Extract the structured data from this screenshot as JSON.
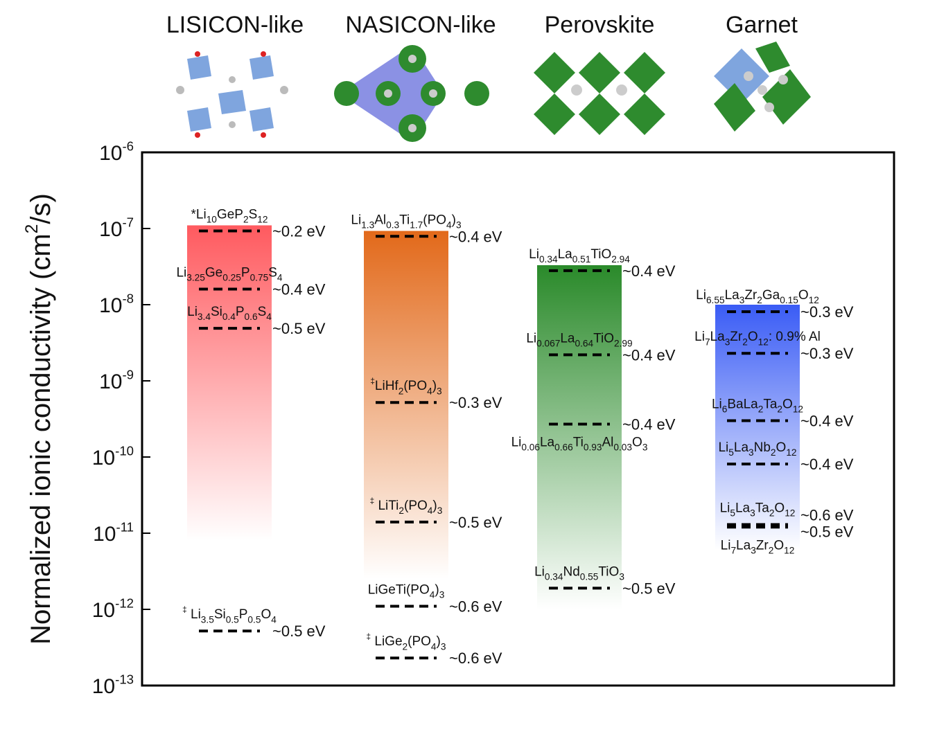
{
  "chart_data": {
    "type": "bar",
    "yscale": "log",
    "ylabel": [
      "Normalized ionic conductivity (cm",
      {
        "sup": "2"
      },
      "/s)"
    ],
    "ylim": [
      1e-13,
      1e-06
    ],
    "yticks": [
      {
        "value": 1e-06,
        "label": [
          "10",
          {
            "sup": "-6"
          }
        ]
      },
      {
        "value": 1e-07,
        "label": [
          "10",
          {
            "sup": "-7"
          }
        ]
      },
      {
        "value": 1e-08,
        "label": [
          "10",
          {
            "sup": "-8"
          }
        ]
      },
      {
        "value": 1e-09,
        "label": [
          "10",
          {
            "sup": "-9"
          }
        ]
      },
      {
        "value": 1e-10,
        "label": [
          "10",
          {
            "sup": "-10"
          }
        ]
      },
      {
        "value": 1e-11,
        "label": [
          "10",
          {
            "sup": "-11"
          }
        ]
      },
      {
        "value": 1e-12,
        "label": [
          "10",
          {
            "sup": "-12"
          }
        ]
      },
      {
        "value": 1e-13,
        "label": [
          "10",
          {
            "sup": "-13"
          }
        ]
      }
    ],
    "series": [
      {
        "name": "LISICON-like",
        "color": "#ff5a5f",
        "top": 1.1e-07,
        "fade_to": 8e-12,
        "points": [
          {
            "formula": [
              "*Li",
              {
                "sub": "10"
              },
              "GeP",
              {
                "sub": "2"
              },
              "S",
              {
                "sub": "12"
              }
            ],
            "value": 9.3e-08,
            "ea": "~0.2 eV"
          },
          {
            "formula": [
              "Li",
              {
                "sub": "3.25"
              },
              "Ge",
              {
                "sub": "0.25"
              },
              "P",
              {
                "sub": "0.75"
              },
              "S",
              {
                "sub": "4"
              }
            ],
            "value": 1.6e-08,
            "ea": "~0.4 eV"
          },
          {
            "formula": [
              "Li",
              {
                "sub": "3.4"
              },
              "Si",
              {
                "sub": "0.4"
              },
              "P",
              {
                "sub": "0.6"
              },
              "S",
              {
                "sub": "4"
              }
            ],
            "value": 4.9e-09,
            "ea": "~0.5 eV"
          },
          {
            "formula": [
              {
                "sup": "‡"
              },
              " Li",
              {
                "sub": "3.5"
              },
              "Si",
              {
                "sub": "0.5"
              },
              "P",
              {
                "sub": "0.5"
              },
              "O",
              {
                "sub": "4"
              }
            ],
            "value": 5.2e-13,
            "ea": "~0.5 eV"
          }
        ]
      },
      {
        "name": "NASICON-like",
        "color": "#e2691a",
        "top": 9.3e-08,
        "fade_to": 2.5e-12,
        "points": [
          {
            "formula": [
              "Li",
              {
                "sub": "1.3"
              },
              "Al",
              {
                "sub": "0.3"
              },
              "Ti",
              {
                "sub": "1.7"
              },
              "(PO",
              {
                "sub": "4"
              },
              ")",
              {
                "sub": "3"
              }
            ],
            "value": 7.9e-08,
            "ea": "~0.4 eV"
          },
          {
            "formula": [
              {
                "sup": "‡"
              },
              "LiHf",
              {
                "sub": "2"
              },
              "(PO",
              {
                "sub": "4"
              },
              ")",
              {
                "sub": "3"
              }
            ],
            "value": 5.2e-10,
            "ea": "~0.3 eV"
          },
          {
            "formula": [
              {
                "sup": "‡"
              },
              " LiTi",
              {
                "sub": "2"
              },
              "(PO",
              {
                "sub": "4"
              },
              ")",
              {
                "sub": "3"
              }
            ],
            "value": 1.4e-11,
            "ea": "~0.5 eV"
          },
          {
            "formula": [
              "LiGeTi(PO",
              {
                "sub": "4"
              },
              ")",
              {
                "sub": "3"
              }
            ],
            "value": 1.1e-12,
            "ea": "~0.6 eV"
          },
          {
            "formula": [
              {
                "sup": "‡"
              },
              " LiGe",
              {
                "sub": "2"
              },
              "(PO",
              {
                "sub": "4"
              },
              ")",
              {
                "sub": "3"
              }
            ],
            "value": 2.3e-13,
            "ea": "~0.6 eV"
          }
        ]
      },
      {
        "name": "Perovskite",
        "color": "#2a8a2a",
        "top": 3.3e-08,
        "fade_to": 1e-12,
        "points": [
          {
            "formula": [
              "Li",
              {
                "sub": "0.34"
              },
              "La",
              {
                "sub": "0.51"
              },
              "TiO",
              {
                "sub": "2.94"
              }
            ],
            "value": 2.8e-08,
            "ea": "~0.4 eV"
          },
          {
            "formula": [
              "Li",
              {
                "sub": "0.067"
              },
              "La",
              {
                "sub": "0.64"
              },
              "TiO",
              {
                "sub": "2.99"
              }
            ],
            "value": 2.2e-09,
            "ea": "~0.4 eV"
          },
          {
            "formula": [
              "Li",
              {
                "sub": "0.06"
              },
              "La",
              {
                "sub": "0.66"
              },
              "Ti",
              {
                "sub": "0.93"
              },
              "Al",
              {
                "sub": "0.03"
              },
              "O",
              {
                "sub": "3"
              }
            ],
            "value": 2.7e-10,
            "ea": "~0.4 eV",
            "label_side": "below"
          },
          {
            "formula": [
              "Li",
              {
                "sub": "0.34"
              },
              "Nd",
              {
                "sub": "0.55"
              },
              "TiO",
              {
                "sub": "3"
              }
            ],
            "value": 1.9e-12,
            "ea": "~0.5 eV"
          }
        ]
      },
      {
        "name": "Garnet",
        "color": "#3a5cf5",
        "top": 1e-08,
        "fade_to": 6e-12,
        "points": [
          {
            "formula": [
              "Li",
              {
                "sub": "6.55"
              },
              "La",
              {
                "sub": "3"
              },
              "Zr",
              {
                "sub": "2"
              },
              "Ga",
              {
                "sub": "0.15"
              },
              "O",
              {
                "sub": "12"
              }
            ],
            "value": 8.1e-09,
            "ea": "~0.3 eV"
          },
          {
            "formula": [
              "Li",
              {
                "sub": "7"
              },
              "La",
              {
                "sub": "3"
              },
              "Zr",
              {
                "sub": "2"
              },
              "O",
              {
                "sub": "12"
              },
              ": 0.9% Al"
            ],
            "value": 2.3e-09,
            "ea": "~0.3 eV"
          },
          {
            "formula": [
              "Li",
              {
                "sub": "6"
              },
              "BaLa",
              {
                "sub": "2"
              },
              "Ta",
              {
                "sub": "2"
              },
              "O",
              {
                "sub": "12"
              }
            ],
            "value": 3e-10,
            "ea": "~0.4 eV"
          },
          {
            "formula": [
              "Li",
              {
                "sub": "5"
              },
              "La",
              {
                "sub": "3"
              },
              "Nb",
              {
                "sub": "2"
              },
              "O",
              {
                "sub": "12"
              }
            ],
            "value": 8.1e-11,
            "ea": "~0.4 eV"
          },
          {
            "formula": [
              "Li",
              {
                "sub": "5"
              },
              "La",
              {
                "sub": "3"
              },
              "Ta",
              {
                "sub": "2"
              },
              "O",
              {
                "sub": "12"
              }
            ],
            "value": 1.3e-11,
            "ea": "~0.6 eV"
          },
          {
            "formula": [
              "Li",
              {
                "sub": "7"
              },
              "La",
              {
                "sub": "3"
              },
              "Zr",
              {
                "sub": "2"
              },
              "O",
              {
                "sub": "12"
              }
            ],
            "value": 1.2e-11,
            "ea": "~0.5 eV",
            "label_side": "below"
          }
        ]
      }
    ]
  }
}
